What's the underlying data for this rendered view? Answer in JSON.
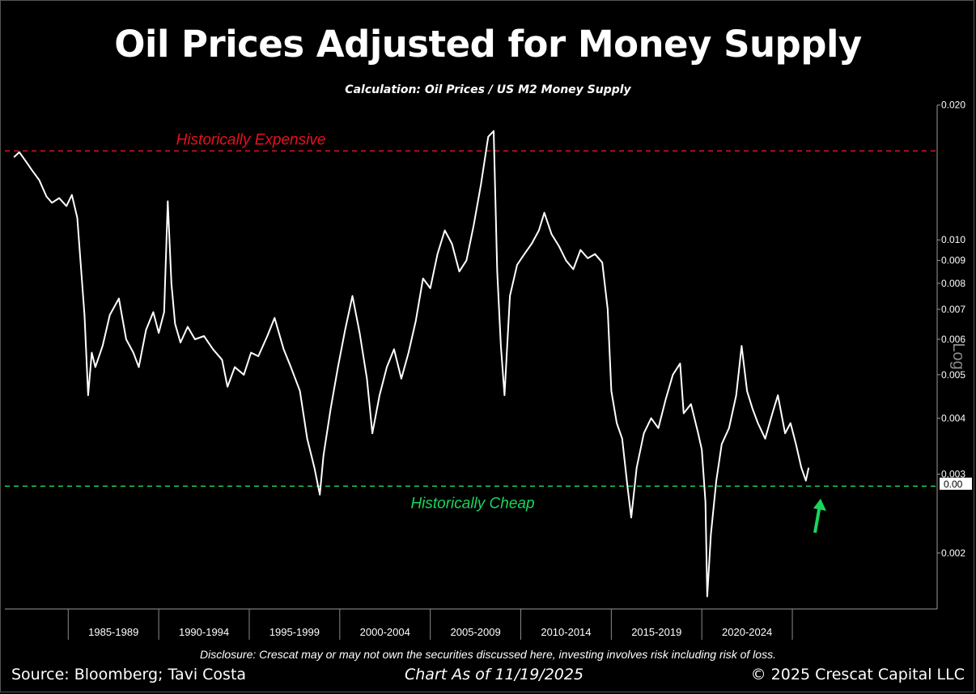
{
  "header": {
    "title": "Oil Prices Adjusted for Money Supply",
    "subtitle": "Calculation: Oil Prices / US M2 Money Supply"
  },
  "footer": {
    "disclosure": "Disclosure: Crescat may or may not own the securities discussed here, investing involves risk including risk of loss.",
    "source": "Source: Bloomberg; Tavi Costa",
    "as_of": "Chart As of 11/19/2025",
    "copyright": "© 2025 Crescat Capital LLC"
  },
  "chart_data": {
    "type": "line",
    "y_scale": "log",
    "ylim": [
      0.0015,
      0.021
    ],
    "xlim": [
      1981.5,
      2033.0
    ],
    "y_axis_label": "Log",
    "y_ticks": [
      {
        "value": 0.002,
        "label": "0.002"
      },
      {
        "value": 0.003,
        "label": "0.003"
      },
      {
        "value": 0.004,
        "label": "0.004"
      },
      {
        "value": 0.005,
        "label": "0.005"
      },
      {
        "value": 0.006,
        "label": "0.006"
      },
      {
        "value": 0.007,
        "label": "0.007"
      },
      {
        "value": 0.008,
        "label": "0.008"
      },
      {
        "value": 0.009,
        "label": "0.009"
      },
      {
        "value": 0.01,
        "label": "0.010"
      },
      {
        "value": 0.02,
        "label": "0.020"
      }
    ],
    "current_value_label": "0.00",
    "current_value": 0.00285,
    "x_period_labels": [
      "1985-1989",
      "1990-1994",
      "1995-1999",
      "2000-2004",
      "2005-2009",
      "2010-2014",
      "2015-2019",
      "2020-2024"
    ],
    "x_period_starts": [
      1985,
      1990,
      1995,
      2000,
      2005,
      2010,
      2015,
      2020,
      2025
    ],
    "reference_lines": [
      {
        "label": "Historically Expensive",
        "value": 0.0158,
        "color": "#e8101e"
      },
      {
        "label": "Historically Cheap",
        "value": 0.00282,
        "color": "#19d65c"
      }
    ],
    "series": [
      {
        "color": "#ffffff",
        "x": [
          1982.0,
          1982.3,
          1982.7,
          1983.0,
          1983.4,
          1983.8,
          1984.1,
          1984.5,
          1984.9,
          1985.2,
          1985.5,
          1985.9,
          1986.1,
          1986.3,
          1986.5,
          1986.9,
          1987.3,
          1987.8,
          1988.2,
          1988.6,
          1988.9,
          1989.3,
          1989.7,
          1990.0,
          1990.3,
          1990.5,
          1990.7,
          1990.9,
          1991.2,
          1991.6,
          1992.0,
          1992.5,
          1993.0,
          1993.5,
          1993.8,
          1994.2,
          1994.7,
          1995.1,
          1995.5,
          1996.0,
          1996.4,
          1996.9,
          1997.3,
          1997.8,
          1998.2,
          1998.6,
          1998.9,
          1999.1,
          1999.5,
          1999.9,
          2000.3,
          2000.7,
          2001.1,
          2001.5,
          2001.8,
          2002.2,
          2002.6,
          2003.0,
          2003.4,
          2003.8,
          2004.2,
          2004.6,
          2005.0,
          2005.4,
          2005.8,
          2006.2,
          2006.6,
          2007.0,
          2007.4,
          2007.8,
          2008.2,
          2008.5,
          2008.7,
          2008.9,
          2009.1,
          2009.4,
          2009.8,
          2010.2,
          2010.6,
          2011.0,
          2011.3,
          2011.7,
          2012.1,
          2012.5,
          2012.9,
          2013.3,
          2013.7,
          2014.1,
          2014.5,
          2014.8,
          2015.0,
          2015.3,
          2015.6,
          2015.9,
          2016.1,
          2016.4,
          2016.8,
          2017.2,
          2017.6,
          2018.0,
          2018.4,
          2018.8,
          2019.0,
          2019.4,
          2019.8,
          2020.0,
          2020.2,
          2020.3,
          2020.5,
          2020.8,
          2021.1,
          2021.5,
          2021.9,
          2022.2,
          2022.5,
          2022.8,
          2023.1,
          2023.5,
          2023.9,
          2024.2,
          2024.6,
          2024.9,
          2025.2,
          2025.5,
          2025.75,
          2025.9
        ],
        "y": [
          0.0153,
          0.0157,
          0.0149,
          0.0143,
          0.0136,
          0.0125,
          0.0121,
          0.0124,
          0.0119,
          0.0126,
          0.0112,
          0.0068,
          0.0045,
          0.0056,
          0.0052,
          0.0058,
          0.0068,
          0.0074,
          0.006,
          0.0056,
          0.0052,
          0.0063,
          0.0069,
          0.0062,
          0.0069,
          0.0122,
          0.008,
          0.0065,
          0.0059,
          0.0064,
          0.006,
          0.0061,
          0.0057,
          0.0054,
          0.0047,
          0.0052,
          0.005,
          0.0056,
          0.0055,
          0.0061,
          0.0067,
          0.0057,
          0.0052,
          0.0046,
          0.0036,
          0.0031,
          0.0027,
          0.0033,
          0.0042,
          0.0052,
          0.0063,
          0.0075,
          0.0062,
          0.0049,
          0.0037,
          0.0045,
          0.0052,
          0.0057,
          0.0049,
          0.0056,
          0.0066,
          0.0082,
          0.0078,
          0.0093,
          0.0105,
          0.0098,
          0.0085,
          0.009,
          0.0108,
          0.0133,
          0.017,
          0.0175,
          0.0085,
          0.0058,
          0.0045,
          0.0075,
          0.0088,
          0.0093,
          0.0098,
          0.0105,
          0.0115,
          0.0103,
          0.0097,
          0.009,
          0.0086,
          0.0095,
          0.0091,
          0.0093,
          0.0089,
          0.007,
          0.0046,
          0.0039,
          0.0036,
          0.0028,
          0.0024,
          0.0031,
          0.0037,
          0.004,
          0.0038,
          0.0044,
          0.005,
          0.0053,
          0.0041,
          0.0043,
          0.0037,
          0.0034,
          0.0026,
          0.0016,
          0.0022,
          0.0029,
          0.0035,
          0.0038,
          0.0045,
          0.0058,
          0.0046,
          0.0042,
          0.0039,
          0.0036,
          0.0041,
          0.0045,
          0.0037,
          0.0039,
          0.0035,
          0.0031,
          0.0029,
          0.0031
        ]
      }
    ]
  }
}
